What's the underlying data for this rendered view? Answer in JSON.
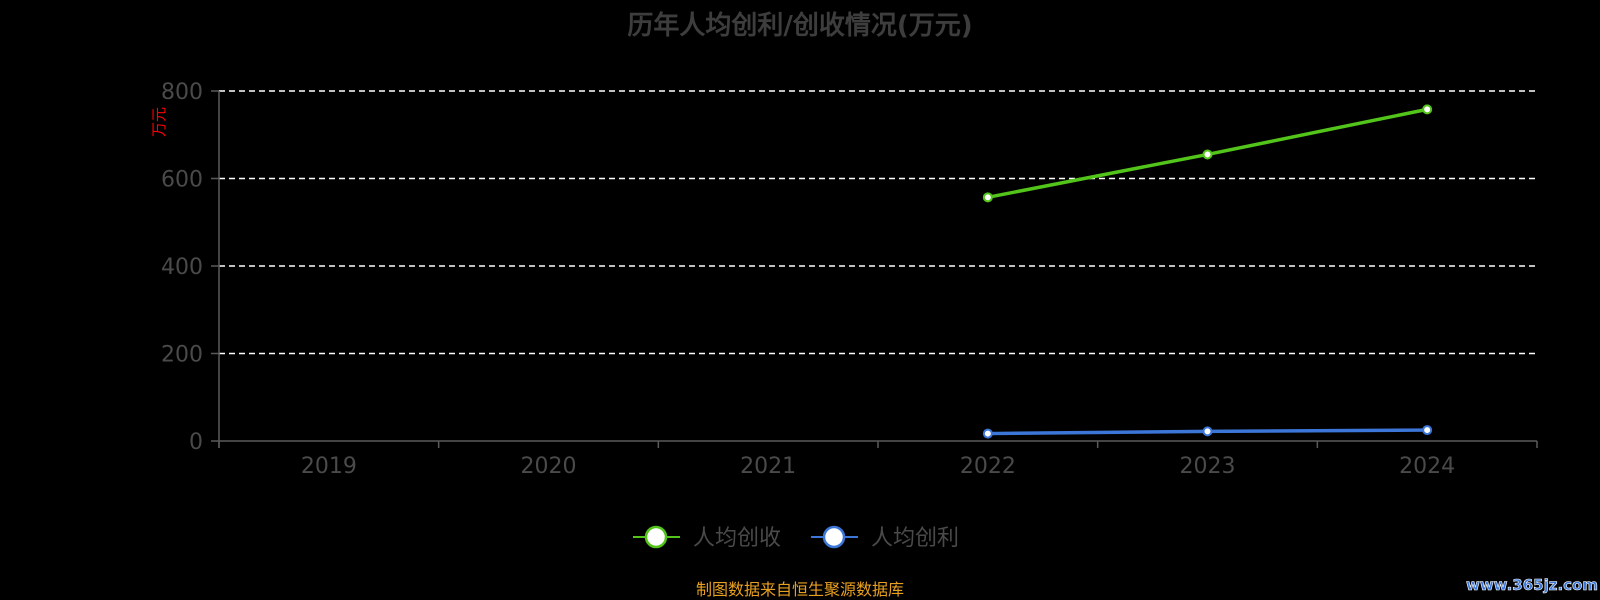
{
  "chart_data": {
    "type": "line",
    "title": "历年人均创利/创收情况(万元)",
    "ylabel": "万元",
    "categories": [
      "2019",
      "2020",
      "2021",
      "2022",
      "2023",
      "2024"
    ],
    "ylim": [
      0,
      800
    ],
    "yticks": [
      0,
      200,
      400,
      600,
      800
    ],
    "grid": true,
    "legend_position": "bottom",
    "series": [
      {
        "name": "人均创收",
        "color": "#52c41a",
        "values": [
          null,
          null,
          null,
          557,
          655,
          758
        ]
      },
      {
        "name": "人均创利",
        "color": "#3b76d8",
        "values": [
          null,
          null,
          null,
          17,
          22,
          25
        ]
      }
    ]
  },
  "footer": {
    "source": "制图数据来自恒生聚源数据库",
    "watermark": "www.365jz.com"
  },
  "colors": {
    "title": "#3d3d3d",
    "axis_text": "#4a4a4a",
    "ylabel": "#ff0000",
    "source": "#e8a020",
    "watermark": "#3b76d8"
  }
}
